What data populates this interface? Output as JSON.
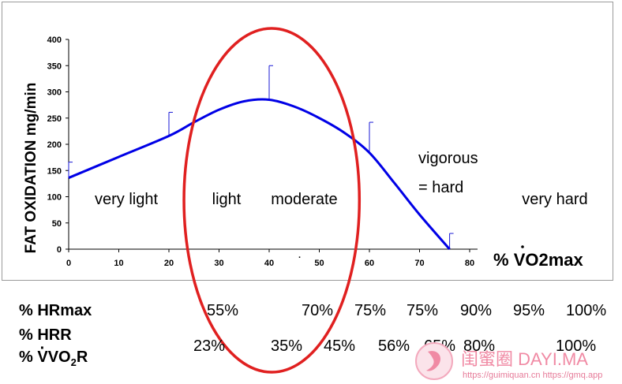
{
  "chart_data": {
    "type": "line",
    "title": "",
    "ylabel": "FAT OXIDATION mg/min",
    "xlabel": "% VO2max",
    "xlim": [
      0,
      80
    ],
    "ylim": [
      0,
      400
    ],
    "x_ticks": [
      0,
      10,
      20,
      30,
      40,
      50,
      60,
      70,
      80
    ],
    "y_ticks": [
      0,
      50,
      100,
      150,
      200,
      250,
      300,
      350,
      400
    ],
    "series": [
      {
        "color": "#0000e6",
        "x": [
          0,
          10,
          20,
          25,
          30,
          35,
          40,
          45,
          50,
          55,
          60,
          65,
          70,
          76
        ],
        "y": [
          136,
          176,
          216,
          242,
          266,
          282,
          285,
          272,
          250,
          222,
          184,
          126,
          66,
          0
        ]
      }
    ],
    "error_bars": [
      {
        "x": 0,
        "y": 136,
        "upper": 166
      },
      {
        "x": 20,
        "y": 216,
        "upper": 261
      },
      {
        "x": 40,
        "y": 285,
        "upper": 350
      },
      {
        "x": 60,
        "y": 184,
        "upper": 242
      },
      {
        "x": 76,
        "y": 0,
        "upper": 30
      }
    ],
    "zones": [
      {
        "label": "very light",
        "x": 11.5
      },
      {
        "label": "light",
        "x": 31.5
      },
      {
        "label": "moderate",
        "x": 47
      },
      {
        "label": "very hard",
        "x": 97
      }
    ],
    "vigorous_lines": [
      "vigorous",
      "= hard"
    ],
    "highlight_ellipse": {
      "color": "#e02020",
      "cx": 40.5,
      "rx": 17.5
    }
  },
  "rows": {
    "hrmax": {
      "label": "% HRmax",
      "values": [
        "55%",
        "70%",
        "75%",
        "75%",
        "90%",
        "95%",
        "100%"
      ]
    },
    "hrr": {
      "label": "% HRR"
    },
    "vo2r": {
      "label_prefix": "% ",
      "label_o": "VO",
      "label_sub": "2",
      "label_suffix": "R",
      "values": [
        "23%",
        "35%",
        "45%",
        "56%",
        "65%",
        "80%",
        "100%"
      ]
    }
  },
  "watermark": {
    "main": "闺蜜圈 DAYI.MA",
    "sub": "https://guimiquan.cn  https://gmq.app"
  },
  "stray_mark": "·"
}
